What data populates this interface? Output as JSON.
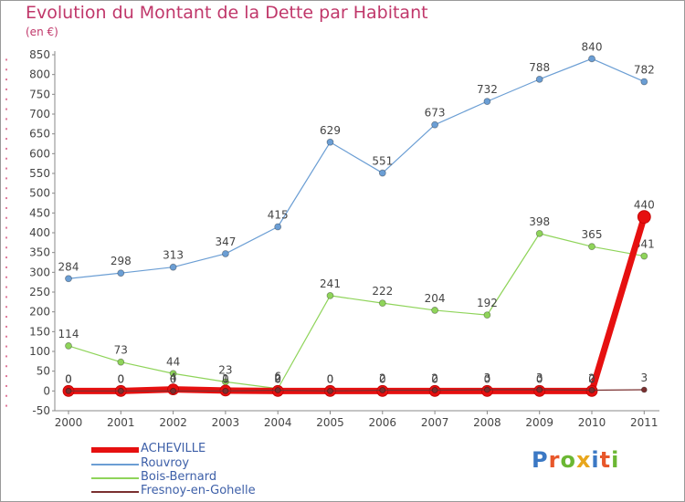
{
  "title": "Evolution du Montant de la Dette par Habitant",
  "subtitle": "(en €)",
  "logo": [
    "P",
    "r",
    "o",
    "x",
    "i",
    "t",
    "i"
  ],
  "logo_colors": [
    "#3b78c4",
    "#e8572a",
    "#6bb733",
    "#e8a61c",
    "#3b78c4",
    "#e8572a",
    "#6bb733"
  ],
  "chart_data": {
    "type": "line",
    "x": [
      "2000",
      "2001",
      "2002",
      "2003",
      "2004",
      "2005",
      "2006",
      "2007",
      "2008",
      "2009",
      "2010",
      "2011"
    ],
    "ylim": [
      -50,
      850
    ],
    "yticks": [
      -50,
      0,
      50,
      100,
      150,
      200,
      250,
      300,
      350,
      400,
      450,
      500,
      550,
      600,
      650,
      700,
      750,
      800,
      850
    ],
    "grid": false,
    "legend_position": "bottom-left",
    "series": [
      {
        "name": "ACHEVILLE",
        "color": "#e61010",
        "values": [
          0,
          0,
          4,
          1,
          0,
          0,
          0,
          0,
          0,
          0,
          0,
          440
        ]
      },
      {
        "name": "Rouvroy",
        "color": "#6b9ed4",
        "values": [
          284,
          298,
          313,
          347,
          415,
          629,
          551,
          673,
          732,
          788,
          840,
          782
        ]
      },
      {
        "name": "Bois-Bernard",
        "color": "#8fd45a",
        "values": [
          114,
          73,
          44,
          23,
          6,
          241,
          222,
          204,
          192,
          398,
          365,
          341
        ]
      },
      {
        "name": "Fresnoy-en-Gohelle",
        "color": "#7a3030",
        "values": [
          0,
          0,
          0,
          0,
          2,
          0,
          2,
          2,
          3,
          3,
          2,
          3
        ]
      }
    ]
  }
}
